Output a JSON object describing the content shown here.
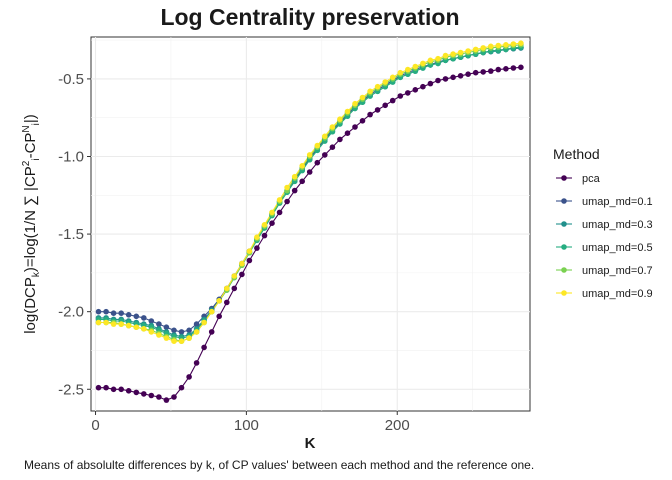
{
  "chart_data": {
    "type": "line",
    "title": "Log Centrality preservation",
    "xlabel": "K",
    "ylabel": "log(DCPk)=log(1/N ∑ |CP2i - CPNi|)",
    "caption": "Means of absolulte differences by k, of CP values' between each method and the reference one.",
    "legend_title": "Method",
    "legend_position": "right",
    "grid": true,
    "xlim": [
      -3,
      288
    ],
    "ylim": [
      -2.64,
      -0.23
    ],
    "x_ticks": [
      0,
      100,
      200
    ],
    "x_tick_labels": [
      "0",
      "100",
      "200"
    ],
    "y_ticks": [
      -2.5,
      -2.0,
      -1.5,
      -1.0,
      -0.5
    ],
    "y_tick_labels": [
      "-2.5",
      "-2.0",
      "-1.5",
      "-1.0",
      "-0.5"
    ],
    "x": [
      2,
      7,
      12,
      17,
      22,
      27,
      32,
      37,
      42,
      47,
      52,
      57,
      62,
      67,
      72,
      77,
      82,
      87,
      92,
      97,
      102,
      107,
      112,
      117,
      122,
      127,
      132,
      137,
      142,
      147,
      152,
      157,
      162,
      167,
      172,
      177,
      182,
      187,
      192,
      197,
      202,
      207,
      212,
      217,
      222,
      227,
      232,
      237,
      242,
      247,
      252,
      257,
      262,
      267,
      272,
      277,
      282
    ],
    "series": [
      {
        "name": "pca",
        "color": "#440154",
        "values": [
          -2.49,
          -2.49,
          -2.5,
          -2.5,
          -2.51,
          -2.52,
          -2.53,
          -2.54,
          -2.55,
          -2.57,
          -2.55,
          -2.49,
          -2.42,
          -2.33,
          -2.23,
          -2.13,
          -2.03,
          -1.94,
          -1.85,
          -1.76,
          -1.67,
          -1.59,
          -1.51,
          -1.43,
          -1.36,
          -1.29,
          -1.22,
          -1.16,
          -1.1,
          -1.04,
          -0.99,
          -0.94,
          -0.89,
          -0.85,
          -0.81,
          -0.77,
          -0.73,
          -0.7,
          -0.67,
          -0.64,
          -0.61,
          -0.59,
          -0.57,
          -0.55,
          -0.53,
          -0.51,
          -0.5,
          -0.49,
          -0.48,
          -0.47,
          -0.46,
          -0.455,
          -0.45,
          -0.44,
          -0.435,
          -0.43,
          -0.425
        ]
      },
      {
        "name": "umap_md=0.1",
        "color": "#3b528b",
        "values": [
          -2.0,
          -2.0,
          -2.01,
          -2.01,
          -2.02,
          -2.03,
          -2.04,
          -2.06,
          -2.08,
          -2.1,
          -2.12,
          -2.13,
          -2.12,
          -2.08,
          -2.03,
          -1.98,
          -1.92,
          -1.85,
          -1.77,
          -1.69,
          -1.61,
          -1.53,
          -1.45,
          -1.37,
          -1.29,
          -1.22,
          -1.15,
          -1.08,
          -1.01,
          -0.95,
          -0.89,
          -0.83,
          -0.78,
          -0.73,
          -0.68,
          -0.64,
          -0.6,
          -0.57,
          -0.54,
          -0.51,
          -0.48,
          -0.46,
          -0.44,
          -0.42,
          -0.41,
          -0.39,
          -0.38,
          -0.37,
          -0.36,
          -0.35,
          -0.34,
          -0.33,
          -0.32,
          -0.315,
          -0.31,
          -0.305,
          -0.3
        ]
      },
      {
        "name": "umap_md=0.3",
        "color": "#21908c",
        "values": [
          -2.04,
          -2.04,
          -2.05,
          -2.05,
          -2.06,
          -2.07,
          -2.08,
          -2.09,
          -2.11,
          -2.13,
          -2.15,
          -2.16,
          -2.15,
          -2.11,
          -2.05,
          -1.99,
          -1.93,
          -1.86,
          -1.78,
          -1.7,
          -1.62,
          -1.54,
          -1.46,
          -1.38,
          -1.3,
          -1.23,
          -1.16,
          -1.09,
          -1.02,
          -0.96,
          -0.9,
          -0.84,
          -0.79,
          -0.74,
          -0.69,
          -0.65,
          -0.61,
          -0.58,
          -0.55,
          -0.52,
          -0.49,
          -0.47,
          -0.45,
          -0.43,
          -0.41,
          -0.4,
          -0.38,
          -0.37,
          -0.36,
          -0.35,
          -0.34,
          -0.33,
          -0.325,
          -0.32,
          -0.31,
          -0.305,
          -0.3
        ]
      },
      {
        "name": "umap_md=0.5",
        "color": "#27ad81",
        "values": [
          -2.05,
          -2.05,
          -2.06,
          -2.06,
          -2.07,
          -2.08,
          -2.09,
          -2.1,
          -2.12,
          -2.14,
          -2.16,
          -2.17,
          -2.16,
          -2.12,
          -2.06,
          -2.0,
          -1.93,
          -1.86,
          -1.78,
          -1.7,
          -1.62,
          -1.54,
          -1.46,
          -1.38,
          -1.3,
          -1.23,
          -1.16,
          -1.09,
          -1.02,
          -0.96,
          -0.9,
          -0.84,
          -0.79,
          -0.74,
          -0.69,
          -0.65,
          -0.61,
          -0.58,
          -0.55,
          -0.52,
          -0.49,
          -0.47,
          -0.45,
          -0.43,
          -0.41,
          -0.4,
          -0.38,
          -0.37,
          -0.36,
          -0.35,
          -0.34,
          -0.33,
          -0.32,
          -0.315,
          -0.31,
          -0.3,
          -0.295
        ]
      },
      {
        "name": "umap_md=0.7",
        "color": "#7ad151",
        "values": [
          -2.07,
          -2.07,
          -2.07,
          -2.08,
          -2.09,
          -2.1,
          -2.11,
          -2.12,
          -2.14,
          -2.16,
          -2.18,
          -2.19,
          -2.17,
          -2.13,
          -2.07,
          -2.0,
          -1.93,
          -1.86,
          -1.78,
          -1.7,
          -1.62,
          -1.53,
          -1.45,
          -1.37,
          -1.29,
          -1.22,
          -1.14,
          -1.07,
          -1.0,
          -0.94,
          -0.88,
          -0.82,
          -0.77,
          -0.72,
          -0.67,
          -0.63,
          -0.59,
          -0.56,
          -0.53,
          -0.5,
          -0.47,
          -0.45,
          -0.43,
          -0.41,
          -0.39,
          -0.38,
          -0.36,
          -0.35,
          -0.34,
          -0.33,
          -0.32,
          -0.31,
          -0.3,
          -0.295,
          -0.29,
          -0.285,
          -0.28
        ]
      },
      {
        "name": "umap_md=0.9",
        "color": "#fde725",
        "values": [
          -2.07,
          -2.07,
          -2.08,
          -2.08,
          -2.09,
          -2.1,
          -2.11,
          -2.13,
          -2.15,
          -2.17,
          -2.19,
          -2.19,
          -2.17,
          -2.13,
          -2.07,
          -2.0,
          -1.93,
          -1.85,
          -1.77,
          -1.69,
          -1.61,
          -1.52,
          -1.44,
          -1.36,
          -1.28,
          -1.2,
          -1.13,
          -1.06,
          -0.99,
          -0.93,
          -0.87,
          -0.81,
          -0.76,
          -0.71,
          -0.66,
          -0.62,
          -0.58,
          -0.55,
          -0.52,
          -0.49,
          -0.46,
          -0.44,
          -0.42,
          -0.4,
          -0.38,
          -0.37,
          -0.35,
          -0.34,
          -0.33,
          -0.32,
          -0.31,
          -0.3,
          -0.29,
          -0.285,
          -0.28,
          -0.275,
          -0.27
        ]
      }
    ]
  }
}
